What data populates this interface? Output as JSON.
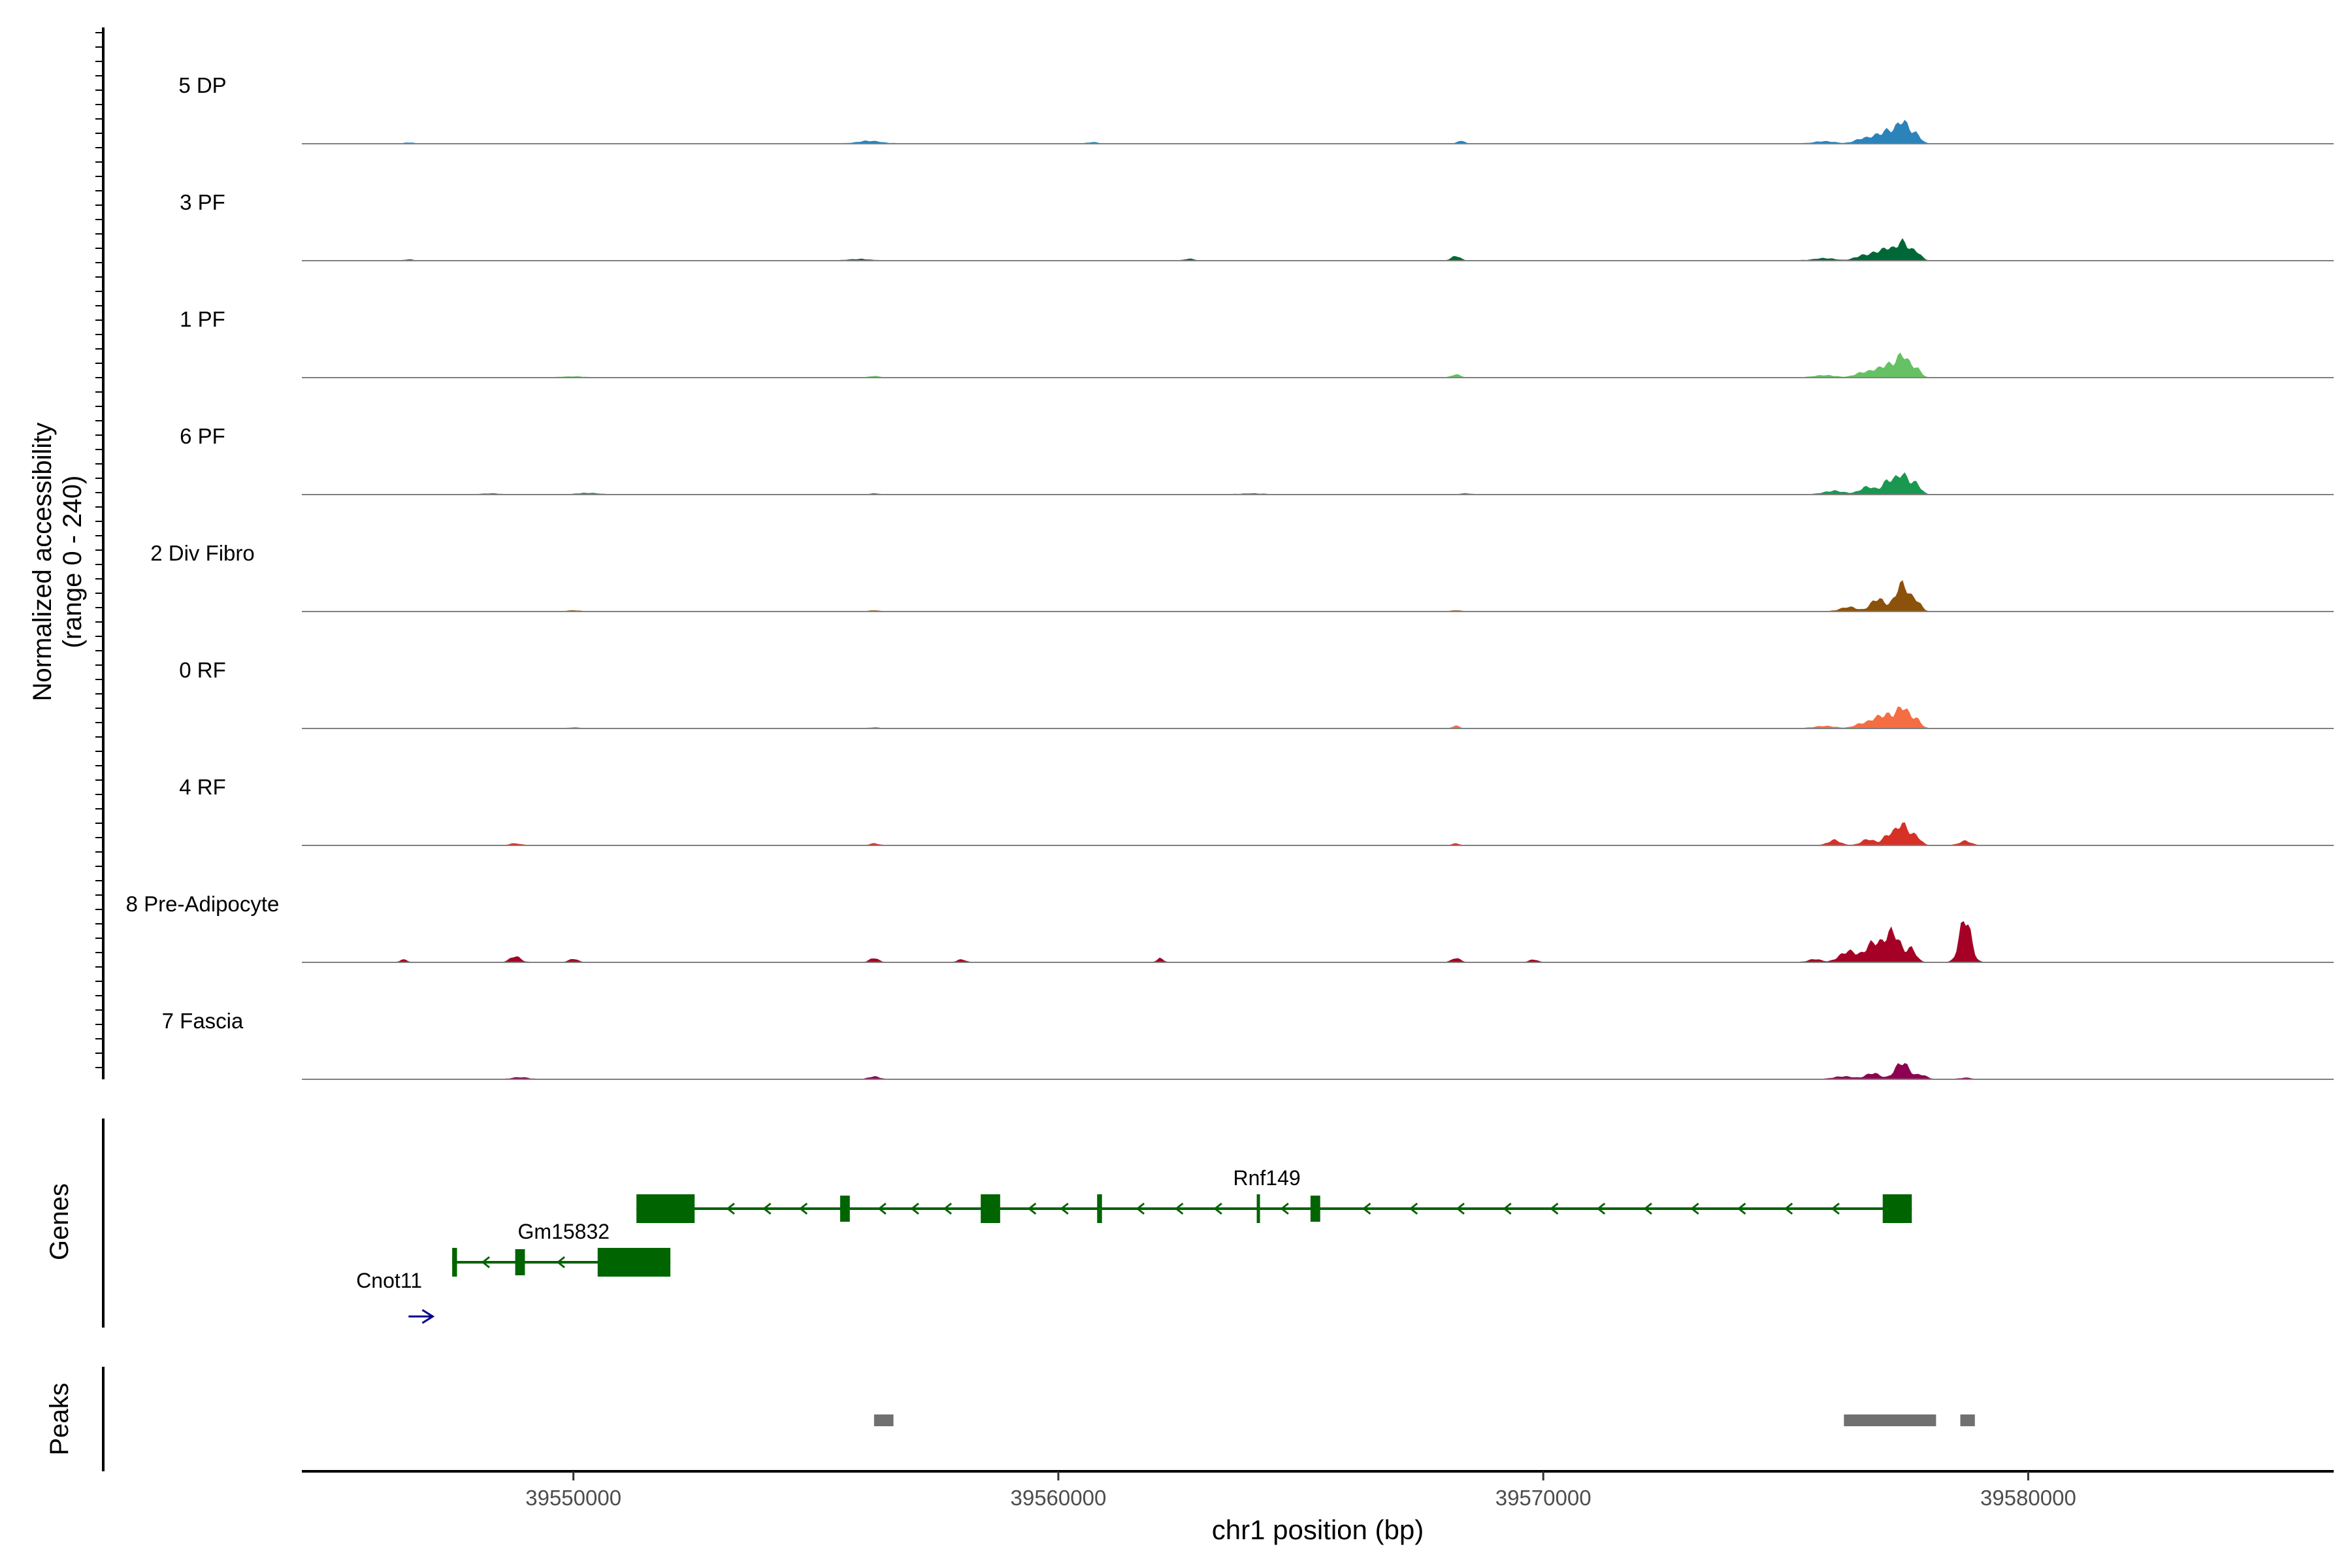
{
  "chart_data": {
    "type": "area",
    "chromosome": "chr1",
    "xlim": [
      39544400,
      39586300
    ],
    "ylabel_line1": "Normalized accessibility",
    "ylabel_line2": "(range 0 - 240)",
    "ylim": [
      0,
      240
    ],
    "xlabel": "chr1 position (bp)",
    "x_ticks": [
      {
        "value": 39550000,
        "label": "39550000"
      },
      {
        "value": 39560000,
        "label": "39560000"
      },
      {
        "value": 39570000,
        "label": "39570000"
      },
      {
        "value": 39580000,
        "label": "39580000"
      }
    ],
    "panel_labels": {
      "genes": "Genes",
      "peaks": "Peaks"
    },
    "tracks": [
      {
        "name": "5 DP",
        "color": "#2B83BA",
        "peaks": [
          [
            39546600,
            2,
            80
          ],
          [
            39556100,
            6,
            220
          ],
          [
            39560700,
            3,
            90
          ],
          [
            39568300,
            7,
            60
          ],
          [
            39575800,
            5,
            200
          ],
          [
            39576600,
            12,
            160
          ],
          [
            39576900,
            18,
            120
          ],
          [
            39577100,
            22,
            90
          ],
          [
            39577400,
            55,
            140
          ],
          [
            39577700,
            18,
            90
          ]
        ]
      },
      {
        "name": "3 PF",
        "color": "#006837",
        "peaks": [
          [
            39546600,
            2,
            80
          ],
          [
            39555900,
            3,
            200
          ],
          [
            39562700,
            4,
            80
          ],
          [
            39568200,
            11,
            80
          ],
          [
            39575800,
            5,
            200
          ],
          [
            39576600,
            12,
            160
          ],
          [
            39576900,
            18,
            120
          ],
          [
            39577100,
            22,
            90
          ],
          [
            39577400,
            45,
            140
          ],
          [
            39577700,
            18,
            90
          ]
        ]
      },
      {
        "name": "1 PF",
        "color": "#66C164",
        "peaks": [
          [
            39550000,
            2,
            200
          ],
          [
            39556200,
            3,
            80
          ],
          [
            39568200,
            7,
            80
          ],
          [
            39575800,
            5,
            200
          ],
          [
            39576600,
            12,
            160
          ],
          [
            39576900,
            18,
            120
          ],
          [
            39577100,
            22,
            90
          ],
          [
            39577400,
            55,
            140
          ],
          [
            39577700,
            18,
            90
          ]
        ]
      },
      {
        "name": "6 PF",
        "color": "#1A9850",
        "peaks": [
          [
            39548300,
            2,
            150
          ],
          [
            39550300,
            3,
            200
          ],
          [
            39556200,
            2,
            80
          ],
          [
            39564000,
            2,
            200
          ],
          [
            39568400,
            2,
            100
          ],
          [
            39576000,
            8,
            200
          ],
          [
            39576700,
            18,
            160
          ],
          [
            39577100,
            28,
            110
          ],
          [
            39577400,
            48,
            140
          ],
          [
            39577700,
            22,
            90
          ]
        ]
      },
      {
        "name": "2 Div Fibro",
        "color": "#8C510A",
        "peaks": [
          [
            39550000,
            2,
            100
          ],
          [
            39556200,
            2,
            80
          ],
          [
            39568200,
            2,
            80
          ],
          [
            39576300,
            10,
            160
          ],
          [
            39576900,
            30,
            140
          ],
          [
            39577400,
            65,
            140
          ],
          [
            39577700,
            22,
            90
          ]
        ]
      },
      {
        "name": "0 RF",
        "color": "#F46D43",
        "peaks": [
          [
            39550000,
            2,
            80
          ],
          [
            39556200,
            2,
            80
          ],
          [
            39568200,
            6,
            60
          ],
          [
            39575800,
            5,
            200
          ],
          [
            39576600,
            12,
            160
          ],
          [
            39576900,
            24,
            120
          ],
          [
            39577100,
            22,
            90
          ],
          [
            39577400,
            52,
            140
          ],
          [
            39577700,
            18,
            90
          ]
        ]
      },
      {
        "name": "4 RF",
        "color": "#D73027",
        "peaks": [
          [
            39548800,
            4,
            100
          ],
          [
            39556200,
            4,
            80
          ],
          [
            39568200,
            4,
            60
          ],
          [
            39576000,
            12,
            120
          ],
          [
            39576700,
            14,
            130
          ],
          [
            39577100,
            20,
            110
          ],
          [
            39577400,
            50,
            140
          ],
          [
            39577700,
            18,
            90
          ],
          [
            39578700,
            10,
            110
          ]
        ]
      },
      {
        "name": "8 Pre-Adipocyte",
        "color": "#A50026",
        "peaks": [
          [
            39546500,
            8,
            50
          ],
          [
            39548800,
            14,
            100
          ],
          [
            39550000,
            8,
            80
          ],
          [
            39556200,
            10,
            80
          ],
          [
            39558000,
            6,
            80
          ],
          [
            39562100,
            9,
            60
          ],
          [
            39568200,
            10,
            80
          ],
          [
            39569800,
            6,
            80
          ],
          [
            39575600,
            7,
            120
          ],
          [
            39576300,
            26,
            180
          ],
          [
            39576800,
            44,
            150
          ],
          [
            39577200,
            72,
            160
          ],
          [
            39577600,
            30,
            90
          ],
          [
            39578700,
            108,
            110
          ]
        ]
      },
      {
        "name": "7 Fascia",
        "color": "#8E0152",
        "peaks": [
          [
            39548900,
            4,
            150
          ],
          [
            39556200,
            6,
            100
          ],
          [
            39576200,
            6,
            200
          ],
          [
            39576800,
            14,
            140
          ],
          [
            39577400,
            40,
            140
          ],
          [
            39577800,
            10,
            100
          ],
          [
            39578700,
            3,
            100
          ]
        ]
      }
    ],
    "genes": [
      {
        "name": "Rnf149",
        "strand": "-",
        "start": 39551300,
        "end": 39577600,
        "row": 0,
        "color": "#006400",
        "exons": [
          [
            39551300,
            39552500,
            "wide"
          ],
          [
            39555500,
            39555700,
            "mid"
          ],
          [
            39558400,
            39558800,
            "wide"
          ],
          [
            39560800,
            39560900,
            "thin"
          ],
          [
            39564100,
            39564150,
            "thin"
          ],
          [
            39565200,
            39565400,
            "mid"
          ],
          [
            39577000,
            39577600,
            "wide"
          ]
        ],
        "label_x": 39564300
      },
      {
        "name": "Gm15832",
        "strand": "-",
        "start": 39547500,
        "end": 39552000,
        "row": 1,
        "color": "#006400",
        "exons": [
          [
            39547500,
            39547600,
            "thin"
          ],
          [
            39548800,
            39549000,
            "mid"
          ],
          [
            39550500,
            39552000,
            "wide"
          ]
        ],
        "label_x": 39549800
      },
      {
        "name": "Cnot11",
        "strand": "+",
        "start": 39546600,
        "end": 39547100,
        "row": 2,
        "color": "#00008B",
        "exons": [],
        "label_x": 39546200
      }
    ],
    "peak_regions": [
      [
        39556200,
        39556600
      ],
      [
        39576200,
        39578100
      ],
      [
        39578600,
        39578900
      ]
    ]
  }
}
